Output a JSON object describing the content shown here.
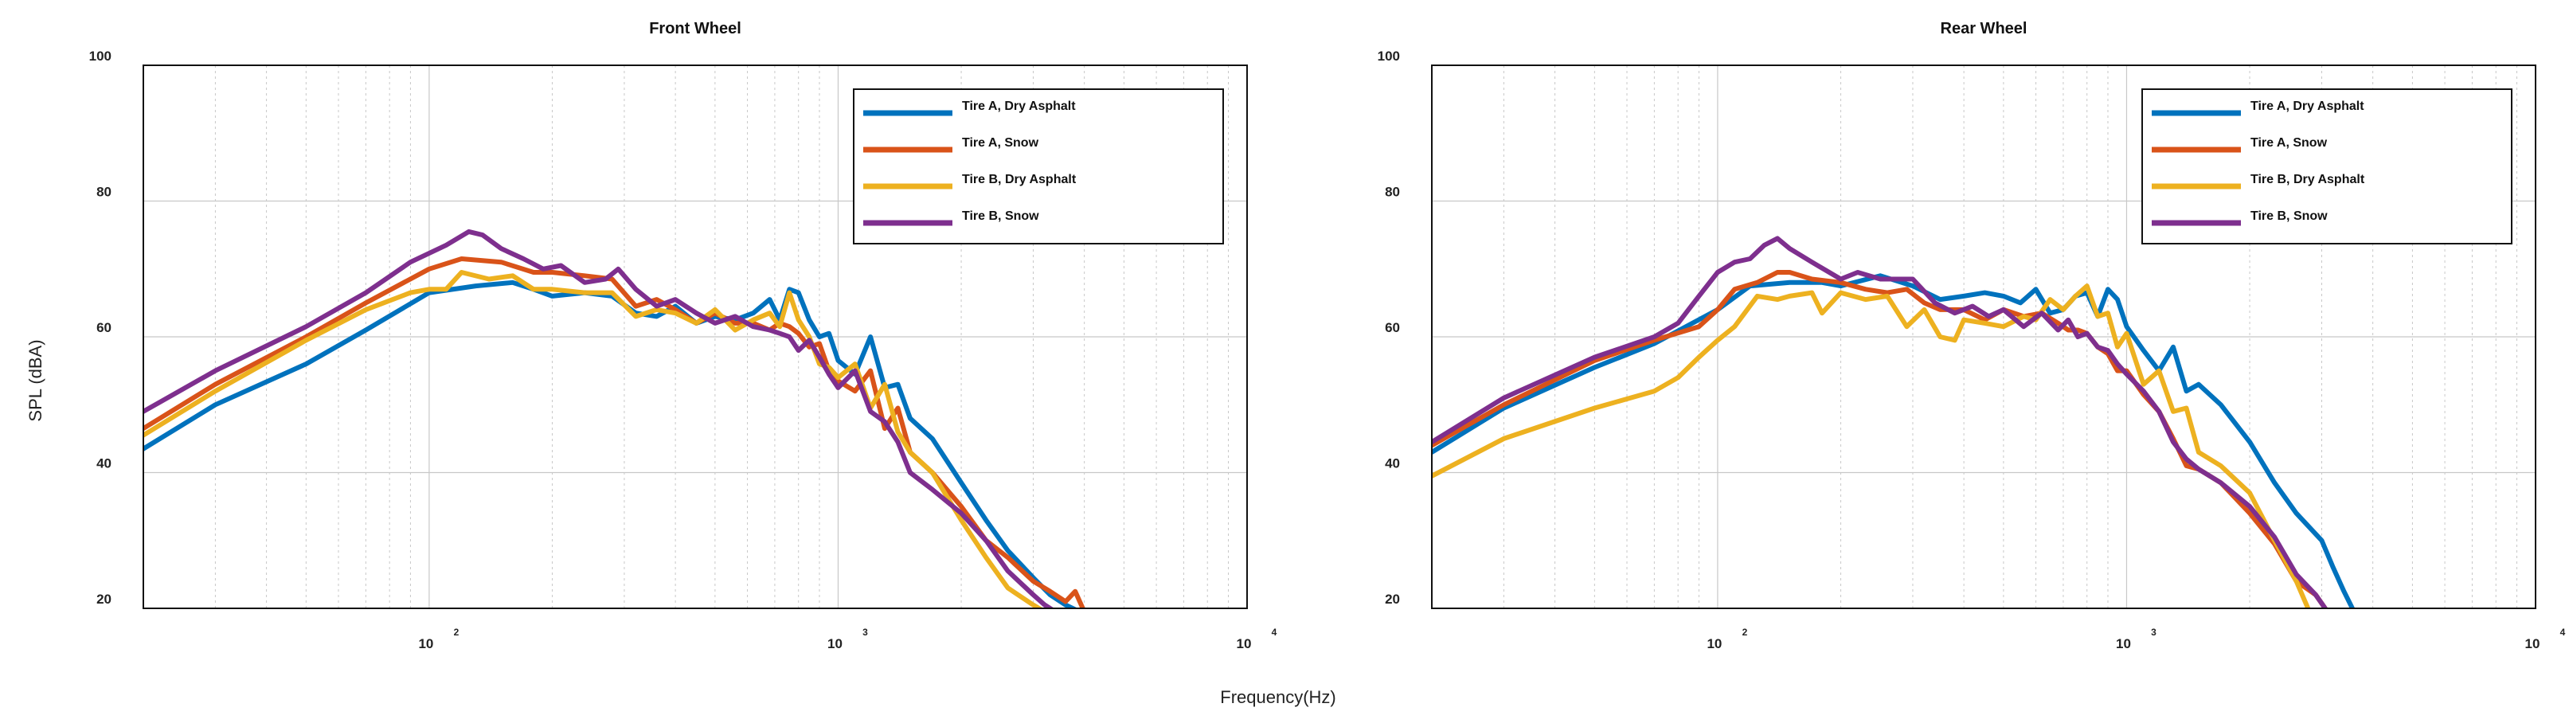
{
  "figure": {
    "shared_ylabel": "SPL (dBA)",
    "shared_xlabel": "Frequency(Hz)"
  },
  "chart_data": [
    {
      "type": "line",
      "title": "Front Wheel",
      "xlabel": "Frequency(Hz)",
      "ylabel": "SPL (dBA)",
      "xscale": "log",
      "xlim": [
        20,
        10000
      ],
      "ylim": [
        20,
        100
      ],
      "yticks": [
        20,
        40,
        60,
        80,
        100
      ],
      "xticks": [
        {
          "base": "10",
          "exp": "2"
        },
        {
          "base": "10",
          "exp": "3"
        },
        {
          "base": "10",
          "exp": "4"
        }
      ],
      "grid": true,
      "legend": "top-right",
      "series": [
        {
          "name": "Tire A, Dry Asphalt",
          "color": "#0072BD",
          "x": [
            20,
            30,
            50,
            70,
            100,
            130,
            160,
            180,
            200,
            240,
            280,
            320,
            360,
            400,
            450,
            500,
            560,
            620,
            680,
            720,
            760,
            800,
            850,
            900,
            950,
            1000,
            1100,
            1200,
            1300,
            1400,
            1500,
            1700,
            2000,
            2300,
            2600,
            3000,
            3300,
            3600,
            3900,
            4100
          ],
          "y": [
            43.5,
            50,
            56,
            61,
            66.5,
            67.5,
            68,
            67,
            66,
            66.5,
            66,
            63.5,
            63,
            64.5,
            62,
            63,
            62.5,
            63.5,
            65.5,
            62.5,
            67,
            66.5,
            62.5,
            60,
            60.5,
            56.5,
            54.5,
            60,
            52.5,
            53,
            48,
            45,
            38.5,
            33,
            28.5,
            24.5,
            22,
            20.5,
            19.5,
            19
          ]
        },
        {
          "name": "Tire A, Snow",
          "color": "#D95319",
          "x": [
            20,
            30,
            50,
            70,
            100,
            120,
            150,
            180,
            200,
            240,
            280,
            320,
            360,
            400,
            450,
            500,
            560,
            620,
            680,
            720,
            760,
            800,
            850,
            900,
            950,
            1000,
            1100,
            1200,
            1300,
            1400,
            1500,
            1700,
            2000,
            2300,
            2600,
            3000,
            3300,
            3600,
            3800,
            4000
          ],
          "y": [
            46.5,
            53,
            60,
            65,
            70,
            71.5,
            71,
            69.5,
            69.5,
            69,
            68.5,
            64.5,
            65.5,
            64,
            62,
            63.5,
            62,
            62,
            61,
            62,
            61.5,
            60.5,
            58.5,
            59,
            55,
            53.5,
            52,
            55,
            46.5,
            49.5,
            43,
            40,
            35,
            30,
            27.5,
            24,
            22.5,
            21,
            22.5,
            19.5
          ]
        },
        {
          "name": "Tire B, Dry Asphalt",
          "color": "#EDB120",
          "x": [
            20,
            30,
            50,
            70,
            90,
            100,
            110,
            120,
            140,
            160,
            180,
            200,
            240,
            280,
            320,
            360,
            400,
            450,
            500,
            560,
            620,
            680,
            720,
            760,
            800,
            850,
            900,
            950,
            1000,
            1100,
            1200,
            1300,
            1400,
            1500,
            1700,
            2000,
            2300,
            2600,
            3000,
            3200
          ],
          "y": [
            45.5,
            52,
            59.5,
            64,
            66.5,
            67,
            67,
            69.5,
            68.5,
            69,
            67,
            67,
            66.5,
            66.5,
            63,
            64,
            63.5,
            62,
            64,
            61,
            62.5,
            63.5,
            61.5,
            66.5,
            62.5,
            60,
            56,
            55.5,
            54,
            56,
            49.5,
            53,
            46,
            43,
            40,
            33,
            27.5,
            23,
            20.5,
            19.5
          ]
        },
        {
          "name": "Tire B, Snow",
          "color": "#7E2F8E",
          "x": [
            20,
            30,
            50,
            70,
            90,
            110,
            125,
            135,
            150,
            170,
            190,
            210,
            240,
            270,
            290,
            320,
            360,
            400,
            450,
            500,
            560,
            620,
            680,
            720,
            760,
            800,
            850,
            900,
            950,
            1000,
            1100,
            1200,
            1300,
            1400,
            1500,
            1700,
            2000,
            2300,
            2600,
            3000,
            3200,
            3400
          ],
          "y": [
            49,
            55,
            61.5,
            66.5,
            71,
            73.5,
            75.5,
            75,
            73,
            71.5,
            70,
            70.5,
            68,
            68.5,
            70,
            67,
            64.5,
            65.5,
            63.5,
            62,
            63,
            61.5,
            61,
            60.5,
            60,
            58,
            59.5,
            57,
            54.5,
            52.5,
            55,
            49,
            47.5,
            44.5,
            40,
            37.5,
            34,
            30,
            25.5,
            22,
            20.5,
            19.5
          ]
        }
      ]
    },
    {
      "type": "line",
      "title": "Rear Wheel",
      "xlabel": "Frequency(Hz)",
      "ylabel": "SPL (dBA)",
      "xscale": "log",
      "xlim": [
        20,
        10000
      ],
      "ylim": [
        20,
        100
      ],
      "yticks": [
        20,
        40,
        60,
        80,
        100
      ],
      "xticks": [
        {
          "base": "10",
          "exp": "2"
        },
        {
          "base": "10",
          "exp": "3"
        },
        {
          "base": "10",
          "exp": "4"
        }
      ],
      "grid": true,
      "legend": "top-right",
      "series": [
        {
          "name": "Tire A, Dry Asphalt",
          "color": "#0072BD",
          "x": [
            20,
            30,
            50,
            70,
            100,
            120,
            150,
            180,
            200,
            250,
            300,
            350,
            400,
            450,
            500,
            550,
            600,
            650,
            700,
            750,
            800,
            850,
            900,
            950,
            1000,
            1100,
            1200,
            1300,
            1400,
            1500,
            1700,
            2000,
            2300,
            2600,
            3000,
            3200,
            3400,
            3600
          ],
          "y": [
            43,
            49.5,
            55.5,
            59,
            64,
            67.5,
            68,
            68,
            67.5,
            69,
            67.5,
            65.5,
            66,
            66.5,
            66,
            65,
            67,
            63.5,
            64,
            66,
            66.5,
            63,
            67,
            65.5,
            61.5,
            58,
            55,
            58.5,
            52,
            53,
            50,
            44.5,
            38.5,
            34,
            30,
            26,
            22.5,
            19.5
          ]
        },
        {
          "name": "Tire A, Snow",
          "color": "#D95319",
          "x": [
            20,
            30,
            50,
            70,
            90,
            100,
            110,
            125,
            140,
            150,
            170,
            200,
            230,
            260,
            290,
            320,
            350,
            400,
            450,
            500,
            560,
            620,
            680,
            720,
            760,
            800,
            850,
            900,
            950,
            1000,
            1100,
            1200,
            1300,
            1400,
            1500,
            1700,
            2000,
            2300,
            2600,
            2900,
            3100
          ],
          "y": [
            44,
            50,
            56.5,
            59.5,
            61.5,
            64,
            67,
            68,
            69.5,
            69.5,
            68.5,
            68,
            67,
            66.5,
            67,
            65,
            64,
            64,
            62.5,
            64,
            63,
            63.5,
            62,
            61,
            61,
            60.5,
            58.5,
            57.5,
            55,
            55,
            51.5,
            49,
            45,
            41,
            40.5,
            38.5,
            34,
            29.5,
            24,
            22,
            19.5
          ]
        },
        {
          "name": "Tire B, Dry Asphalt",
          "color": "#EDB120",
          "x": [
            20,
            30,
            50,
            70,
            80,
            90,
            100,
            110,
            125,
            140,
            150,
            170,
            180,
            200,
            230,
            260,
            290,
            320,
            350,
            380,
            400,
            450,
            500,
            560,
            600,
            650,
            700,
            750,
            800,
            850,
            900,
            950,
            1000,
            1100,
            1200,
            1300,
            1400,
            1500,
            1700,
            2000,
            2300,
            2600,
            2800
          ],
          "y": [
            39.5,
            45,
            49.5,
            52,
            54,
            57,
            59.5,
            61.5,
            66,
            65.5,
            66,
            66.5,
            63.5,
            66.5,
            65.5,
            66,
            61.5,
            64,
            60,
            59.5,
            62.5,
            62,
            61.5,
            63,
            62.5,
            65.5,
            64,
            66,
            67.5,
            63,
            63.5,
            58.5,
            60.5,
            53,
            55,
            49,
            49.5,
            43,
            41,
            37,
            30,
            24,
            19.5
          ]
        },
        {
          "name": "Tire B, Snow",
          "color": "#7E2F8E",
          "x": [
            20,
            30,
            50,
            70,
            80,
            90,
            100,
            110,
            120,
            130,
            140,
            150,
            170,
            200,
            220,
            250,
            280,
            300,
            340,
            380,
            420,
            460,
            500,
            560,
            620,
            680,
            720,
            760,
            800,
            850,
            900,
            950,
            1000,
            1100,
            1200,
            1300,
            1400,
            1500,
            1700,
            2000,
            2300,
            2600,
            2900,
            3100
          ],
          "y": [
            44.5,
            51,
            57,
            60,
            62,
            66,
            69.5,
            71,
            71.5,
            73.5,
            74.5,
            73,
            71,
            68.5,
            69.5,
            68.5,
            68.5,
            68.5,
            65,
            63.5,
            64.5,
            63,
            64,
            61.5,
            63.5,
            61,
            62.5,
            60,
            60.5,
            58.5,
            58,
            56,
            54.5,
            52,
            49,
            44.5,
            42,
            40.5,
            38.5,
            35,
            30.5,
            25,
            22,
            19.5
          ]
        }
      ]
    }
  ]
}
